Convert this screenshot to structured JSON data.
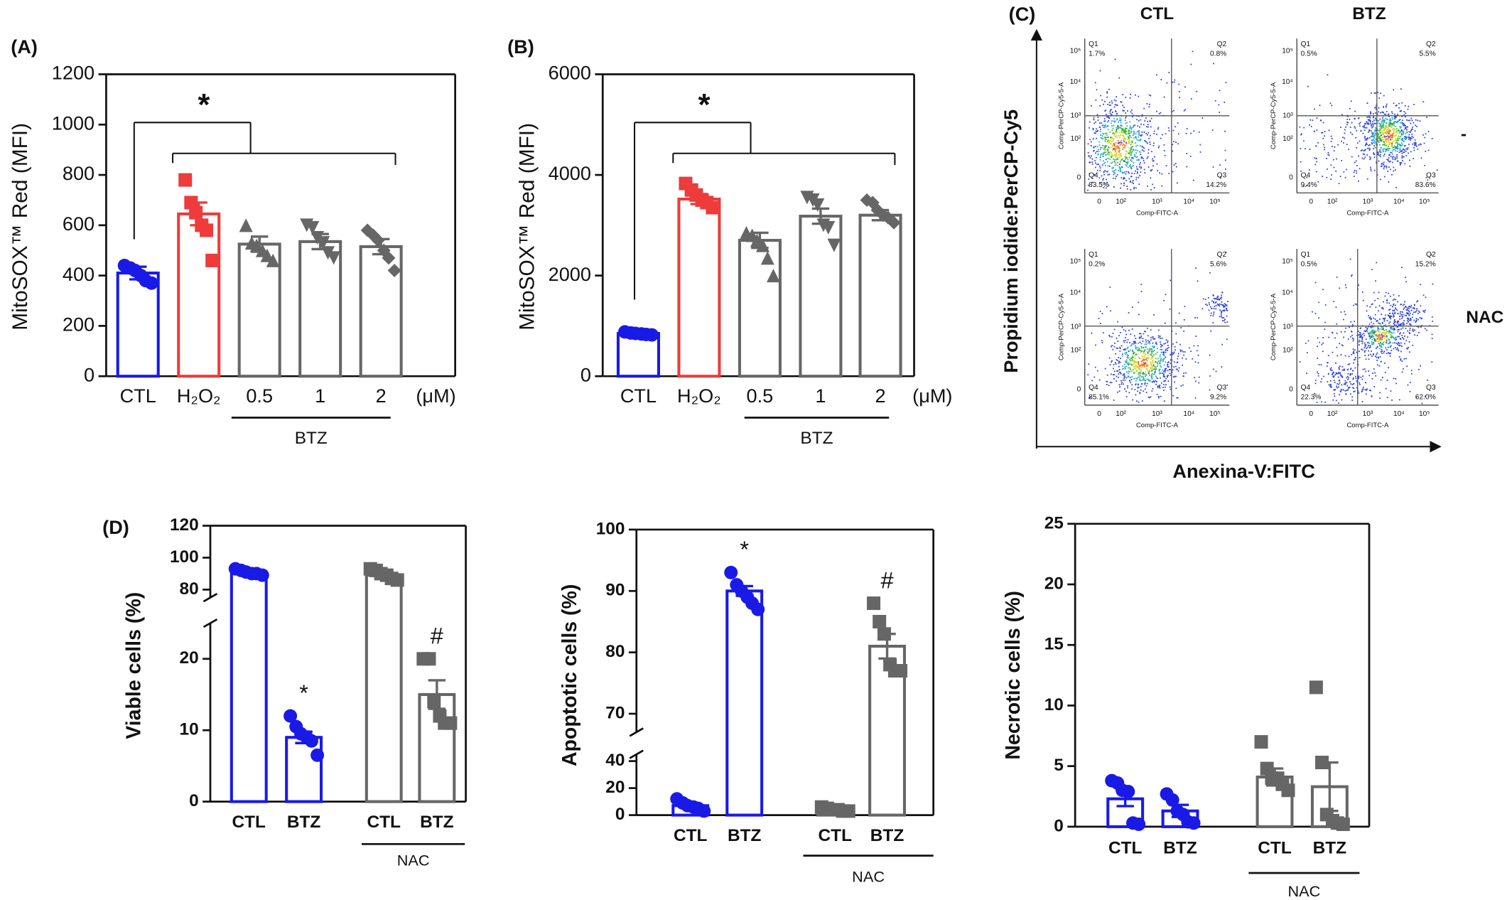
{
  "chart_data": [
    {
      "type": "bar",
      "panel_label": "(A)",
      "ylabel": "MitoSOX™ Red (MFI)",
      "categories": [
        "CTL",
        "H₂O₂",
        "0.5",
        "1",
        "2"
      ],
      "unit": "(μM)",
      "colors": [
        "#1a1ae6",
        "#ee3b3b",
        "#666666",
        "#666666",
        "#666666"
      ],
      "values": [
        410,
        645,
        525,
        535,
        515
      ],
      "errors": [
        25,
        45,
        30,
        30,
        30
      ],
      "markers": [
        "circle",
        "square",
        "triangle",
        "triangle-down",
        "diamond"
      ],
      "points": [
        [
          440,
          430,
          420,
          400,
          380,
          370
        ],
        [
          780,
          690,
          650,
          600,
          580,
          460
        ],
        [
          600,
          530,
          520,
          500,
          480,
          460
        ],
        [
          600,
          590,
          550,
          530,
          490,
          470
        ],
        [
          580,
          560,
          540,
          500,
          470,
          420
        ]
      ],
      "ylim": [
        0,
        1200
      ],
      "yticks": [
        0,
        200,
        400,
        600,
        800,
        1000,
        1200
      ],
      "groups": [
        {
          "label": "BTZ",
          "from": 2,
          "to": 4
        }
      ],
      "annotation": "*"
    },
    {
      "type": "bar",
      "panel_label": "(B)",
      "ylabel": "MitoSOX™ Red (MFI)",
      "categories": [
        "CTL",
        "H₂O₂",
        "0.5",
        "1",
        "2"
      ],
      "unit": "(μM)",
      "colors": [
        "#1a1ae6",
        "#ee3b3b",
        "#666666",
        "#666666",
        "#666666"
      ],
      "values": [
        850,
        3520,
        2700,
        3180,
        3200
      ],
      "errors": [
        30,
        100,
        150,
        150,
        100
      ],
      "markers": [
        "circle",
        "square",
        "triangle",
        "triangle-down",
        "diamond"
      ],
      "points": [
        [
          880,
          860,
          850,
          840,
          830,
          820
        ],
        [
          3830,
          3700,
          3600,
          3500,
          3450,
          3350
        ],
        [
          2850,
          2800,
          2700,
          2600,
          2350,
          2000
        ],
        [
          3550,
          3500,
          3400,
          3000,
          2950,
          2600
        ],
        [
          3500,
          3450,
          3300,
          3200,
          3150,
          3050
        ]
      ],
      "ylim": [
        0,
        6000
      ],
      "yticks": [
        0,
        2000,
        4000,
        6000
      ],
      "groups": [
        {
          "label": "BTZ",
          "from": 2,
          "to": 4
        }
      ],
      "annotation": "*"
    },
    {
      "type": "bar",
      "panel_label": "(D)",
      "ylabel": "Viable cells (%)",
      "categories": [
        "CTL",
        "BTZ",
        "CTL",
        "BTZ"
      ],
      "colors": [
        "#1a1ae6",
        "#1a1ae6",
        "#666666",
        "#666666"
      ],
      "values": [
        91,
        9,
        89,
        15
      ],
      "errors": [
        1.5,
        0.8,
        2,
        2
      ],
      "markers": [
        "circle",
        "circle",
        "square",
        "square"
      ],
      "points": [
        [
          93,
          92,
          91,
          90,
          90,
          89
        ],
        [
          12,
          10.5,
          9.5,
          9,
          8.5,
          6.5
        ],
        [
          93,
          92,
          90,
          89,
          87,
          86
        ],
        [
          20,
          20,
          14,
          12,
          11,
          11
        ]
      ],
      "axis_segments": [
        {
          "ylim": [
            0,
            25
          ],
          "yticks": [
            0,
            10,
            20
          ]
        },
        {
          "ylim": [
            75,
            120
          ],
          "yticks": [
            80,
            100,
            120
          ]
        }
      ],
      "groups": [
        {
          "label": "NAC",
          "from": 2,
          "to": 3
        }
      ],
      "annotations": [
        {
          "text": "*",
          "category": 1
        },
        {
          "text": "#",
          "category": 3
        }
      ]
    },
    {
      "type": "bar",
      "ylabel": "Apoptotic cells (%)",
      "categories": [
        "CTL",
        "BTZ",
        "CTL",
        "BTZ"
      ],
      "colors": [
        "#1a1ae6",
        "#1a1ae6",
        "#666666",
        "#666666"
      ],
      "values": [
        7,
        90,
        4,
        81
      ],
      "errors": [
        1.5,
        0.8,
        0.8,
        2
      ],
      "markers": [
        "circle",
        "circle",
        "square",
        "square"
      ],
      "points": [
        [
          12,
          9,
          7,
          6,
          5,
          3
        ],
        [
          93,
          91,
          90,
          89,
          88,
          87
        ],
        [
          6,
          5,
          4,
          4,
          3,
          3
        ],
        [
          88,
          85,
          83,
          78,
          77,
          77
        ]
      ],
      "axis_segments": [
        {
          "ylim": [
            0,
            45
          ],
          "yticks": [
            0,
            20,
            40
          ]
        },
        {
          "ylim": [
            67,
            100
          ],
          "yticks": [
            70,
            80,
            90,
            100
          ]
        }
      ],
      "groups": [
        {
          "label": "NAC",
          "from": 2,
          "to": 3
        }
      ],
      "annotations": [
        {
          "text": "*",
          "category": 1
        },
        {
          "text": "#",
          "category": 3
        }
      ]
    },
    {
      "type": "bar",
      "ylabel": "Necrotic cells (%)",
      "categories": [
        "CTL",
        "BTZ",
        "CTL",
        "BTZ"
      ],
      "colors": [
        "#1a1ae6",
        "#1a1ae6",
        "#666666",
        "#666666"
      ],
      "values": [
        2.3,
        1.3,
        4.1,
        3.3
      ],
      "errors": [
        0.6,
        0.5,
        0.7,
        2
      ],
      "markers": [
        "circle",
        "circle",
        "square",
        "square"
      ],
      "points": [
        [
          3.8,
          3.6,
          3.0,
          2.9,
          0.3,
          0.2
        ],
        [
          2.7,
          2.2,
          1.3,
          1.0,
          0.4,
          0.3
        ],
        [
          7,
          4.8,
          4.0,
          4.0,
          3.5,
          3.0
        ],
        [
          11.5,
          5.3,
          1.0,
          0.5,
          0.3,
          0.2
        ]
      ],
      "ylim": [
        0,
        25
      ],
      "yticks": [
        0,
        5,
        10,
        15,
        20,
        25
      ],
      "groups": [
        {
          "label": "NAC",
          "from": 2,
          "to": 3
        }
      ]
    }
  ],
  "flow": {
    "panel_label": "(C)",
    "columns": [
      "CTL",
      "BTZ"
    ],
    "rows": [
      "-",
      "NAC"
    ],
    "ylabel": "Propidium iodide:PerCP-Cy5",
    "xlabel": "Anexina-V:FITC",
    "plot_xlabel": "Comp-FITC-A",
    "plot_ylabel": "Comp-PerCP-Cy5-5-A",
    "ticks": [
      "0",
      "10²",
      "10³",
      "10⁴",
      "10⁵"
    ],
    "quadrant_names": [
      "Q1",
      "Q2",
      "Q3",
      "Q4"
    ],
    "plots": [
      {
        "percents": [
          "1.7%",
          "0.8%",
          "14.2%",
          "83.5%"
        ]
      },
      {
        "percents": [
          "0.5%",
          "5.5%",
          "83.6%",
          "9.4%"
        ]
      },
      {
        "percents": [
          "0.2%",
          "5.6%",
          "9.2%",
          "85.1%"
        ]
      },
      {
        "percents": [
          "0.5%",
          "15.2%",
          "62.0%",
          "22.3%"
        ]
      }
    ]
  }
}
